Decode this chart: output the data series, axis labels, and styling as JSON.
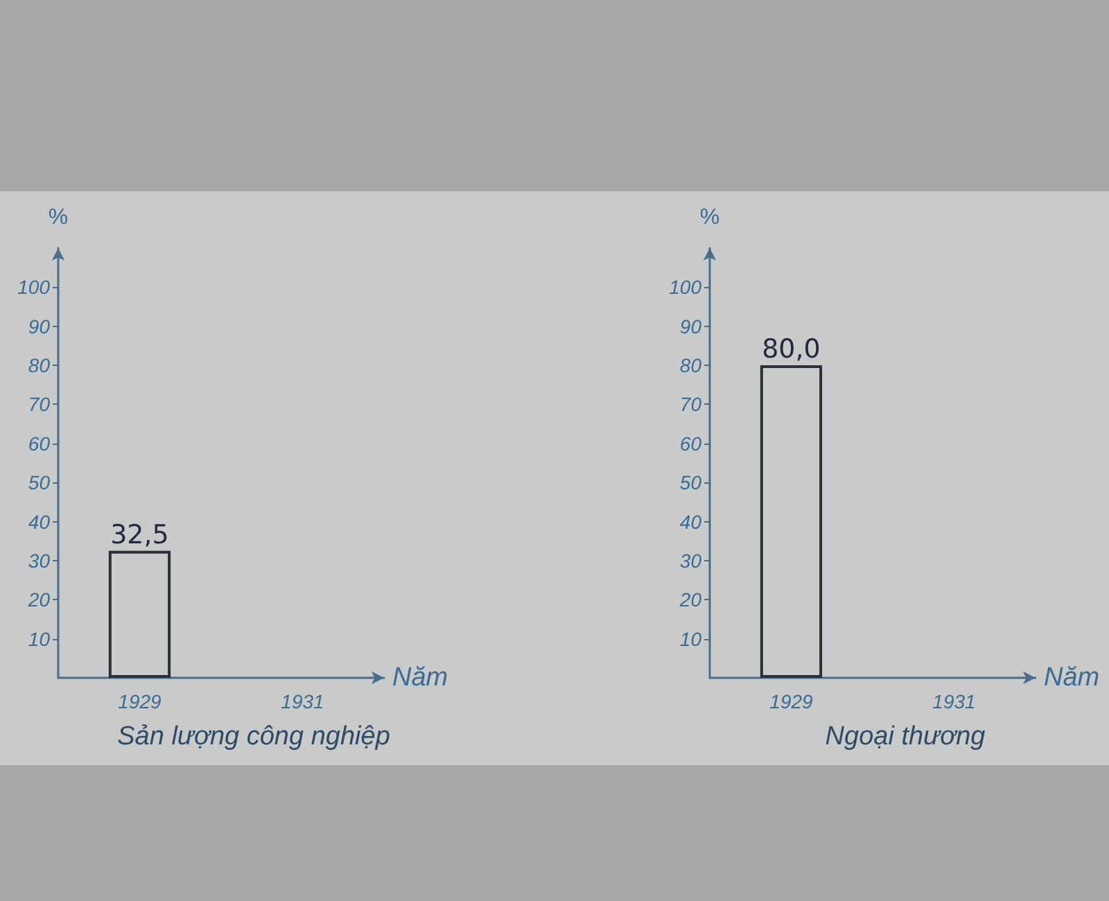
{
  "chart_data": [
    {
      "type": "bar",
      "title": "Sản lượng công nghiệp",
      "xlabel": "Năm",
      "ylabel": "%",
      "categories": [
        "1929",
        "1931"
      ],
      "values": [
        32.5,
        null
      ],
      "value_labels": [
        "32,5",
        null
      ],
      "color": "#2b2f38",
      "ylim": [
        0,
        110
      ],
      "yticks": [
        10,
        20,
        30,
        40,
        50,
        60,
        70,
        80,
        90,
        100
      ]
    },
    {
      "type": "bar",
      "title": "Ngoại thương",
      "xlabel": "Năm",
      "ylabel": "%",
      "categories": [
        "1929",
        "1931"
      ],
      "values": [
        80,
        null
      ],
      "value_labels": [
        "80,0",
        null
      ],
      "color": "#2b2f38",
      "ylim": [
        0,
        110
      ],
      "yticks": [
        10,
        20,
        30,
        40,
        50,
        60,
        70,
        80,
        90,
        100
      ]
    }
  ]
}
